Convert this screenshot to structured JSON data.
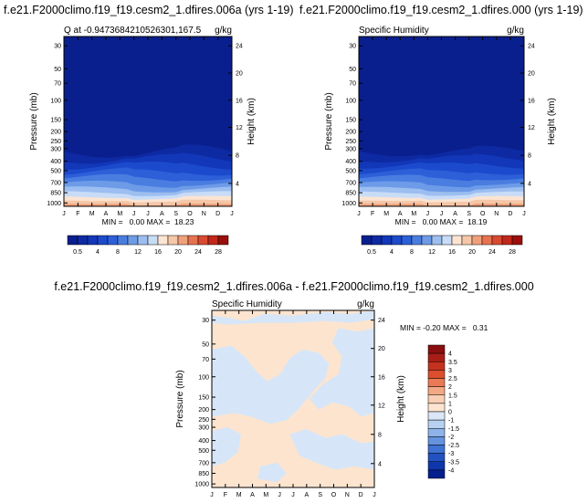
{
  "panels": [
    {
      "id": "left",
      "title": "f.e21.F2000climo.f19_f19.cesm2_1.dfires.006a (yrs 1-19)",
      "subtitle": "Q at -0.9473684210526301,167.5",
      "units": "g/kg",
      "minmax": "MIN =   0.00 MAX =  18.23"
    },
    {
      "id": "right",
      "title": "f.e21.F2000climo.f19_f19.cesm2_1.dfires.000 (yrs 1-19)",
      "subtitle": "Specific Humidity",
      "units": "g/kg",
      "minmax": "MIN =   0.00 MAX =  18.19"
    },
    {
      "id": "diff",
      "title": "f.e21.F2000climo.f19_f19.cesm2_1.dfires.006a - f.e21.F2000climo.f19_f19.cesm2_1.dfires.000",
      "subtitle": "Specific Humidity",
      "units": "g/kg",
      "minmax": "MIN = -0.20 MAX =   0.31"
    }
  ],
  "chart_data": [
    {
      "type": "heatmap",
      "title": "f.e21.F2000climo.f19_f19.cesm2_1.dfires.006a (yrs 1-19)",
      "subtitle": "Q at -0.9473684210526301,167.5",
      "ylabel": "Pressure (mb)",
      "y2label": "Height (km)",
      "x_ticks": [
        "J",
        "F",
        "M",
        "A",
        "M",
        "J",
        "J",
        "A",
        "S",
        "O",
        "N",
        "D",
        "J"
      ],
      "y_ticks": [
        "30",
        "50",
        "70",
        "100",
        "150",
        "200",
        "250",
        "300",
        "400",
        "500",
        "700",
        "850",
        "1000"
      ],
      "y2_ticks": [
        "24",
        "20",
        "16",
        "12",
        "8",
        "4"
      ],
      "colorbar_labels": [
        "0.5",
        "4",
        "8",
        "12",
        "16",
        "20",
        "24",
        "28"
      ],
      "min": 0.0,
      "max": 18.23,
      "units": "g/kg"
    },
    {
      "type": "heatmap",
      "title": "f.e21.F2000climo.f19_f19.cesm2_1.dfires.000 (yrs 1-19)",
      "subtitle": "Specific Humidity",
      "ylabel": "Pressure (mb)",
      "y2label": "Height (km)",
      "x_ticks": [
        "J",
        "F",
        "M",
        "A",
        "M",
        "J",
        "J",
        "A",
        "S",
        "O",
        "N",
        "D",
        "J"
      ],
      "y_ticks": [
        "30",
        "50",
        "70",
        "100",
        "150",
        "200",
        "250",
        "300",
        "400",
        "500",
        "700",
        "850",
        "1000"
      ],
      "y2_ticks": [
        "24",
        "20",
        "16",
        "12",
        "8",
        "4"
      ],
      "colorbar_labels": [
        "0.5",
        "4",
        "8",
        "12",
        "16",
        "20",
        "24",
        "28"
      ],
      "min": 0.0,
      "max": 18.19,
      "units": "g/kg"
    },
    {
      "type": "heatmap",
      "title": "f.e21.F2000climo.f19_f19.cesm2_1.dfires.006a - f.e21.F2000climo.f19_f19.cesm2_1.dfires.000",
      "subtitle": "Specific Humidity",
      "ylabel": "Pressure (mb)",
      "y2label": "Height (km)",
      "x_ticks": [
        "J",
        "F",
        "M",
        "A",
        "M",
        "J",
        "J",
        "A",
        "S",
        "O",
        "N",
        "D",
        "J"
      ],
      "y_ticks": [
        "30",
        "50",
        "70",
        "100",
        "150",
        "200",
        "250",
        "300",
        "400",
        "500",
        "700",
        "850",
        "1000"
      ],
      "y2_ticks": [
        "24",
        "20",
        "16",
        "12",
        "8",
        "4"
      ],
      "colorbar_labels": [
        "4",
        "3.5",
        "3",
        "2.5",
        "2",
        "1.5",
        "1",
        "0",
        "-1",
        "-1.5",
        "-2",
        "-2.5",
        "-3",
        "-3.5",
        "-4"
      ],
      "min": -0.2,
      "max": 0.31,
      "units": "g/kg"
    }
  ],
  "colors": {
    "seq": [
      "#0a1f8e",
      "#0d2aa3",
      "#1237b8",
      "#1c4acc",
      "#2c5fd8",
      "#4a7de0",
      "#6d9be8",
      "#9cbef0",
      "#c9dcf7",
      "#fbe4d2",
      "#f5c7a8",
      "#f0a07a",
      "#e67350",
      "#d94a30",
      "#c2281a",
      "#9a0f0b"
    ],
    "div": [
      "#8a0e0e",
      "#a81e17",
      "#c4321f",
      "#dc4e2e",
      "#ea7a55",
      "#f2a886",
      "#f8cfb4",
      "#fce4d0",
      "#dbe7f7",
      "#b8d1f1",
      "#8fb3e9",
      "#6593de",
      "#3f72d2",
      "#2252c2",
      "#0e37ac",
      "#061f8e"
    ],
    "diff_pos": "#fde4cf",
    "diff_neg": "#d6e6f8"
  }
}
